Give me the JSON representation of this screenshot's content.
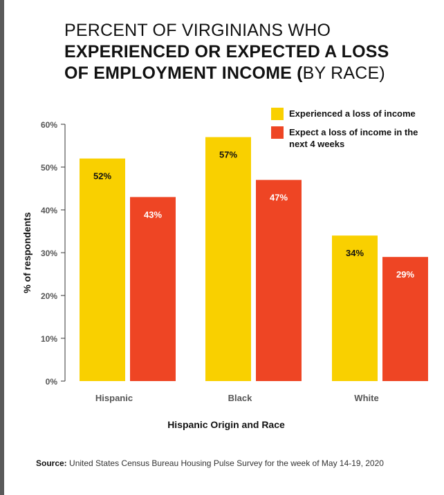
{
  "title": {
    "line1": "PERCENT OF VIRGINIANS WHO",
    "line2": "EXPERIENCED OR EXPECTED A LOSS",
    "line3_bold": "OF EMPLOYMENT INCOME (",
    "line3_normal": "BY RACE)"
  },
  "source": {
    "label": "Source:",
    "text": "United States Census Bureau Housing Pulse Survey for the week of May 14-19, 2020"
  },
  "colors": {
    "experienced": "#f9d000",
    "expect": "#ee4524"
  },
  "chart_data": {
    "type": "bar",
    "categories": [
      "Hispanic",
      "Black",
      "White"
    ],
    "series": [
      {
        "name": "Experienced a loss of income",
        "values": [
          52,
          57,
          34
        ],
        "labels": [
          "52%",
          "57%",
          "34%"
        ]
      },
      {
        "name": "Expect a loss of income in the next 4 weeks",
        "values": [
          43,
          47,
          29
        ],
        "labels": [
          "43%",
          "47%",
          "29%"
        ]
      }
    ],
    "legend_lines": [
      [
        "Experienced a loss of income"
      ],
      [
        "Expect a loss of income in the",
        "next 4 weeks"
      ]
    ],
    "xlabel": "Hispanic Origin and Race",
    "ylabel": "% of respondents",
    "ylim": [
      0,
      60
    ],
    "yticks": [
      0,
      10,
      20,
      30,
      40,
      50,
      60
    ],
    "ytick_labels": [
      "0%",
      "10%",
      "20%",
      "30%",
      "40%",
      "50%",
      "60%"
    ],
    "legend_position": "top-right",
    "grid": false
  }
}
